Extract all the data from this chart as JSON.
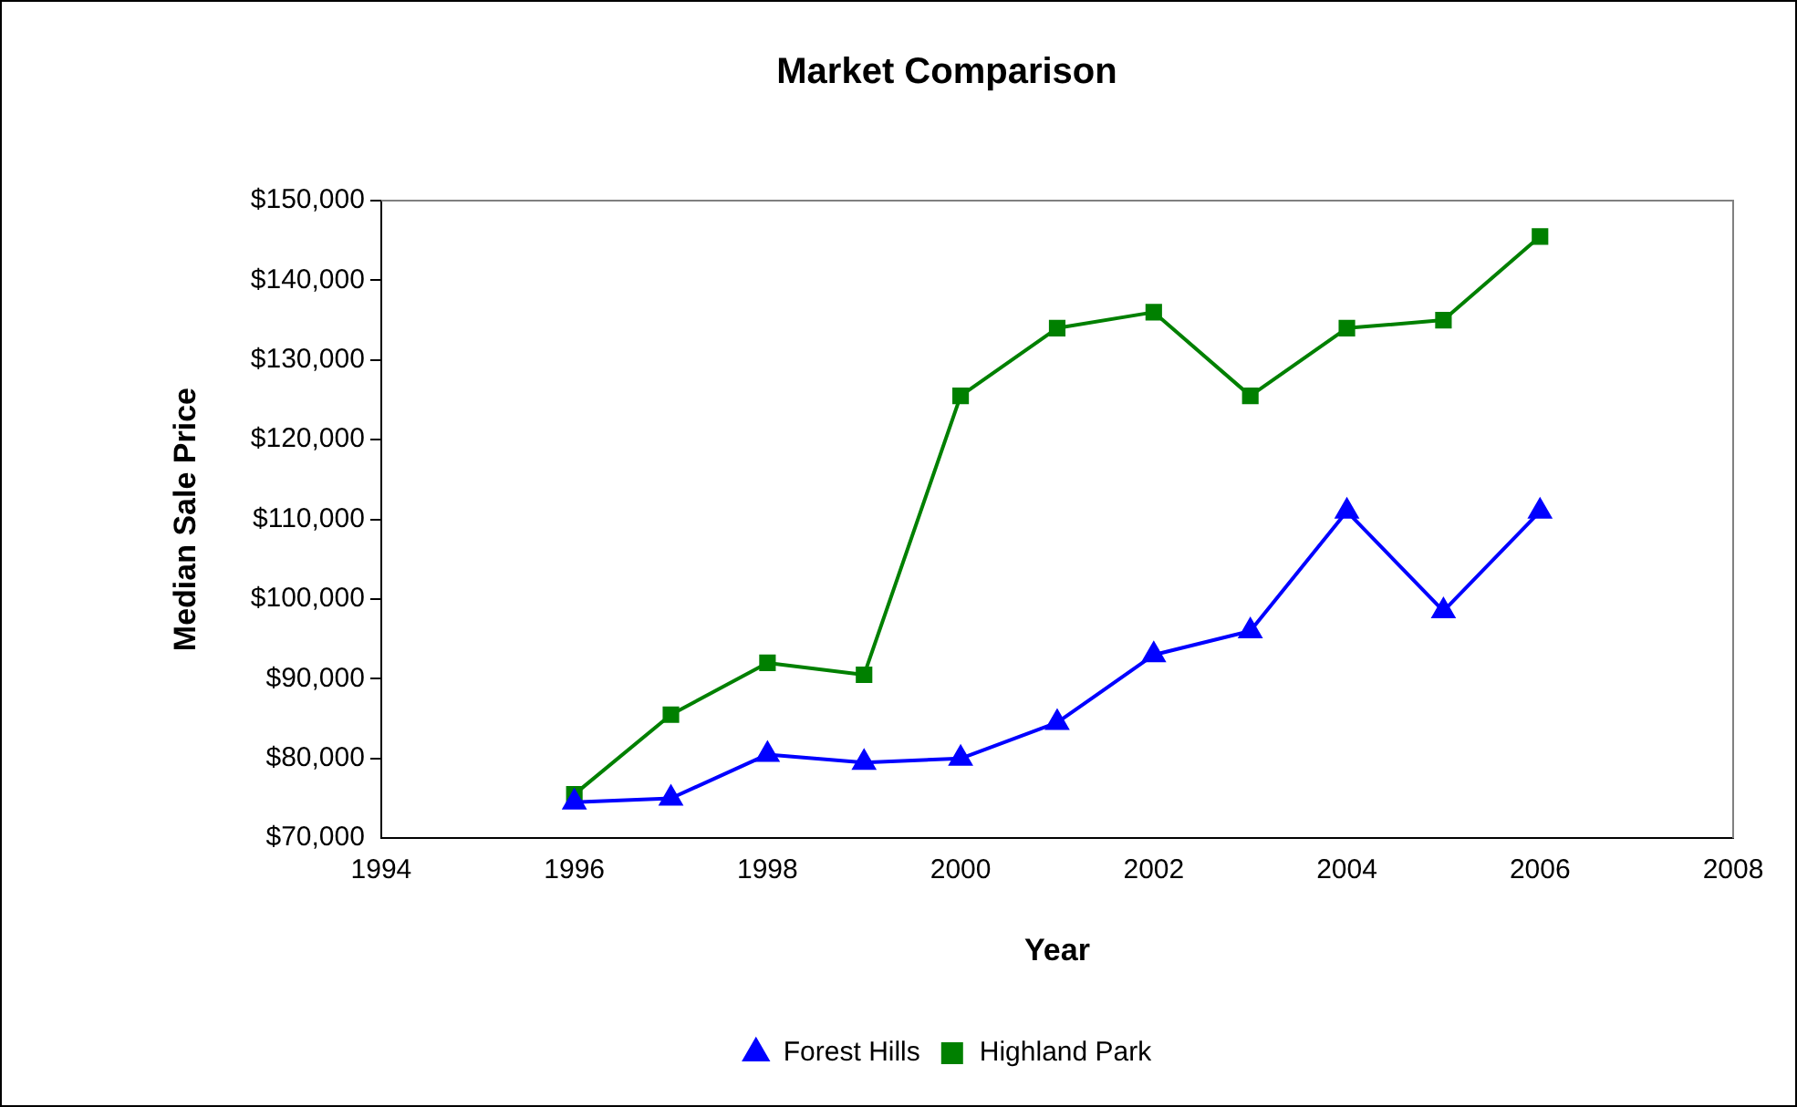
{
  "chart_data": {
    "type": "line",
    "title": "Market Comparison",
    "xlabel": "Year",
    "ylabel": "Median Sale Price",
    "x": [
      1996,
      1997,
      1998,
      1999,
      2000,
      2001,
      2002,
      2003,
      2004,
      2005,
      2006
    ],
    "series": [
      {
        "name": "Forest Hills",
        "color": "#0000ff",
        "marker": "triangle",
        "values": [
          74500,
          75000,
          80500,
          79500,
          80000,
          84500,
          93000,
          96000,
          111000,
          98500,
          111000
        ]
      },
      {
        "name": "Highland Park",
        "color": "#008000",
        "marker": "square",
        "values": [
          75500,
          85500,
          92000,
          90500,
          125500,
          134000,
          136000,
          125500,
          134000,
          135000,
          145500
        ]
      }
    ],
    "xlim": [
      1994,
      2008
    ],
    "xticks": [
      1994,
      1996,
      1998,
      2000,
      2002,
      2004,
      2006,
      2008
    ],
    "ylim": [
      70000,
      150000
    ],
    "yticks": [
      {
        "value": 70000,
        "label": "$70,000"
      },
      {
        "value": 80000,
        "label": "$80,000"
      },
      {
        "value": 90000,
        "label": "$90,000"
      },
      {
        "value": 100000,
        "label": "$100,000"
      },
      {
        "value": 110000,
        "label": "$110,000"
      },
      {
        "value": 120000,
        "label": "$120,000"
      },
      {
        "value": 130000,
        "label": "$130,000"
      },
      {
        "value": 140000,
        "label": "$140,000"
      },
      {
        "value": 150000,
        "label": "$150,000"
      }
    ],
    "grid": false,
    "legend": "bottom"
  }
}
